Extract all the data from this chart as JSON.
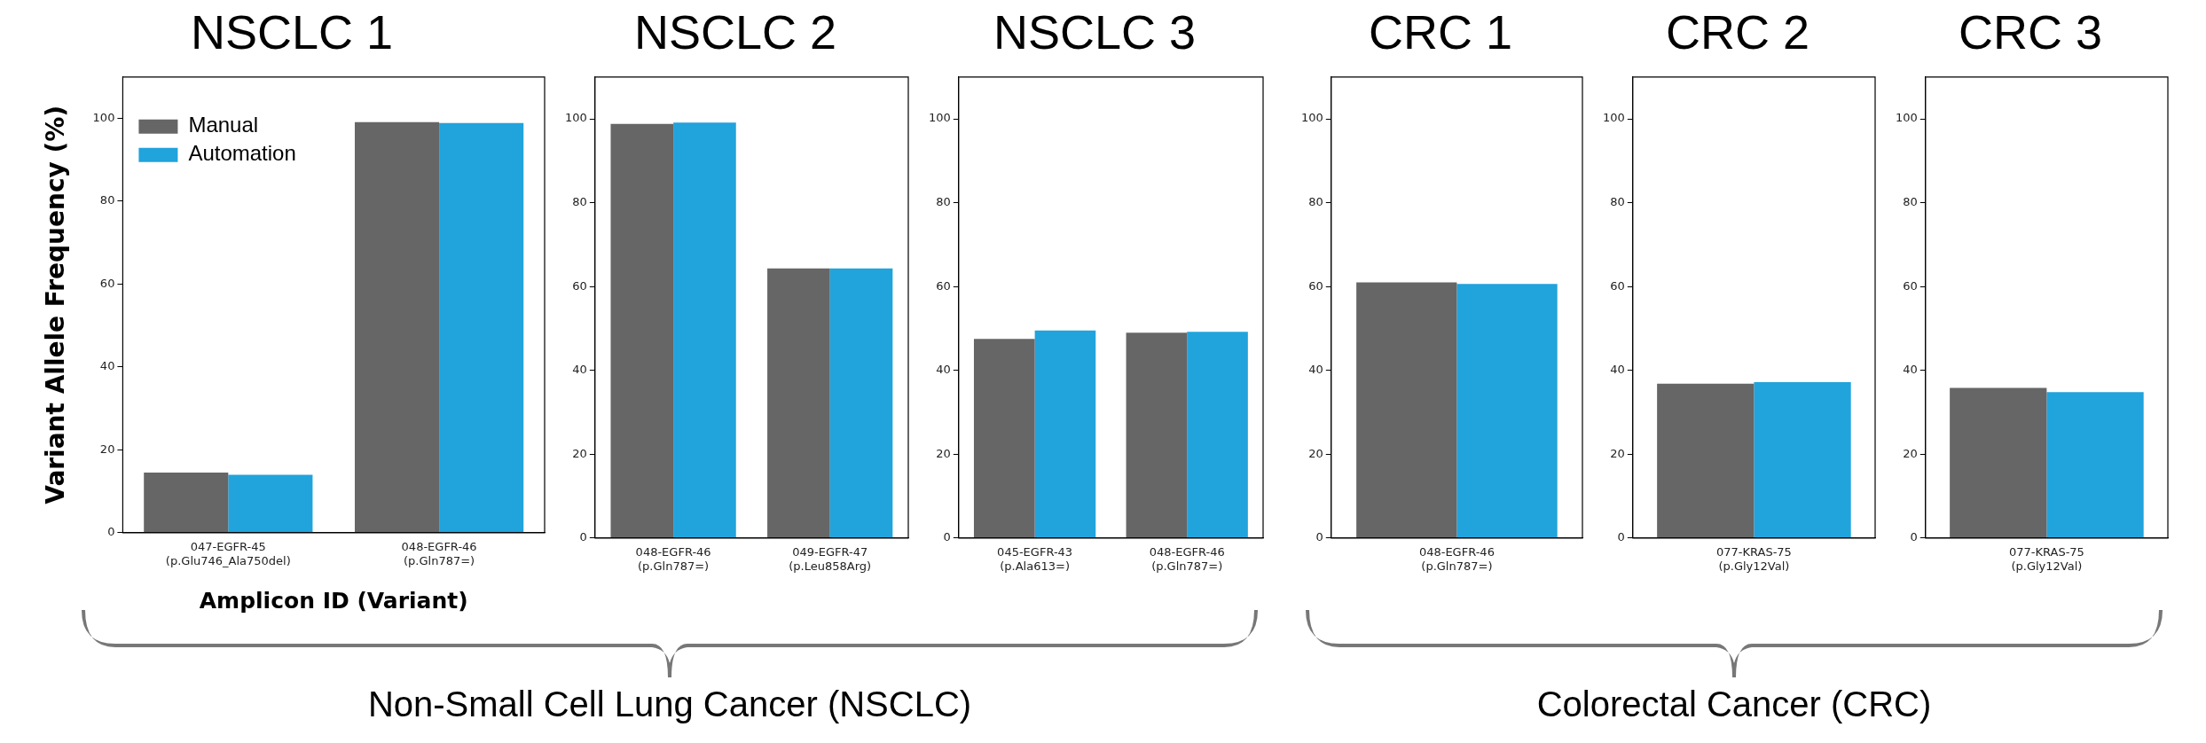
{
  "chart_data": [
    {
      "type": "bar",
      "title": "NSCLC 1",
      "ylabel": "Variant Allele Frequency (%)",
      "xlabel": "Amplicon ID (Variant)",
      "categories": [
        "047-EGFR-45\n(p.Glu746_Ala750del)",
        "048-EGFR-46\n(p.Gln787=)"
      ],
      "series": [
        {
          "name": "Manual",
          "color": "#666666",
          "values": [
            14.5,
            99.1
          ]
        },
        {
          "name": "Automation",
          "color": "#21a3dc",
          "values": [
            14,
            98.9
          ]
        }
      ],
      "ylim": [
        0,
        110
      ],
      "yticks": [
        0,
        20,
        40,
        60,
        80,
        100
      ],
      "grid": false,
      "legend": "top left",
      "annotations": [
        "Non-Small Cell Lung Cancer (NSCLC)"
      ]
    },
    {
      "type": "bar",
      "title": "NSCLC 2",
      "categories": [
        "048-EGFR-46\n(p.Gln787=)",
        "049-EGFR-47\n(p.Leu858Arg)"
      ],
      "series": [
        {
          "color": "#666666",
          "values": [
            98.8,
            64.3
          ]
        },
        {
          "color": "#21a3dc",
          "values": [
            99.1,
            64.3
          ]
        }
      ],
      "ylim": [
        0,
        110
      ],
      "yticks": [
        0,
        20,
        40,
        60,
        80,
        100
      ],
      "grid": false
    },
    {
      "type": "bar",
      "title": "NSCLC 3",
      "categories": [
        "045-EGFR-43\n(p.Ala613=)",
        "048-EGFR-46\n(p.Gln787=)"
      ],
      "series": [
        {
          "color": "#666666",
          "values": [
            47.5,
            49.0
          ]
        },
        {
          "color": "#21a3dc",
          "values": [
            49.5,
            49.2
          ]
        }
      ],
      "ylim": [
        0,
        110
      ],
      "yticks": [
        0,
        20,
        40,
        60,
        80,
        100
      ],
      "grid": false
    },
    {
      "type": "bar",
      "title": "CRC 1",
      "categories": [
        "048-EGFR-46\n(p.Gln787=)"
      ],
      "series": [
        {
          "color": "#666666",
          "values": [
            61.0
          ]
        },
        {
          "color": "#21a3dc",
          "values": [
            60.6
          ]
        }
      ],
      "ylim": [
        0,
        110
      ],
      "yticks": [
        0,
        20,
        40,
        60,
        80,
        100
      ],
      "grid": false,
      "annotations": [
        "Colorectal Cancer (CRC)"
      ]
    },
    {
      "type": "bar",
      "title": "CRC 2",
      "categories": [
        "077-KRAS-75\n(p.Gly12Val)"
      ],
      "series": [
        {
          "color": "#666666",
          "values": [
            36.8
          ]
        },
        {
          "color": "#21a3dc",
          "values": [
            37.2
          ]
        }
      ],
      "ylim": [
        0,
        110
      ],
      "yticks": [
        0,
        20,
        40,
        60,
        80,
        100
      ],
      "grid": false
    },
    {
      "type": "bar",
      "title": "CRC 3",
      "categories": [
        "077-KRAS-75\n(p.Gly12Val)"
      ],
      "series": [
        {
          "color": "#666666",
          "values": [
            35.8
          ]
        },
        {
          "color": "#21a3dc",
          "values": [
            34.8
          ]
        }
      ],
      "ylim": [
        0,
        110
      ],
      "yticks": [
        0,
        20,
        40,
        60,
        80,
        100
      ],
      "grid": false
    }
  ]
}
